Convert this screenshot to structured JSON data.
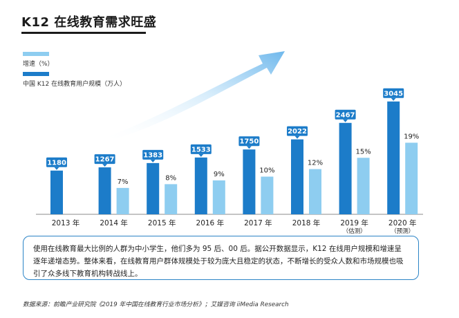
{
  "title": "K12 在线教育需求旺盛",
  "summary": "使用在线教育最大比例的人群为中小学生，他们多为 95 后、00 后。据公开数据显示，K12 在线用户规模和增速呈逐年递增态势。整体来看，在线教育用户群体规模处于较为庞大且稳定的状态，不断增长的受众人数和市场规模也吸引了众多线下教育机构转战线上。",
  "source": "数据来源：前瞻产业研究院《2019 年中国在线教育行业市场分析》；艾媒咨询 iiMedia Research",
  "colors": {
    "users": "#1c7cc9",
    "growth": "#8ecdf0",
    "label_box": "#1c7cc9",
    "text": "#222222"
  },
  "chart_data": {
    "type": "bar",
    "categories": [
      "2013 年",
      "2014 年",
      "2015 年",
      "2016 年",
      "2017 年",
      "2018 年",
      "2019 年",
      "2020 年"
    ],
    "category_notes": [
      "",
      "",
      "",
      "",
      "",
      "",
      "（估测）",
      "（预测）"
    ],
    "series": [
      {
        "name": "中国 K12 在线教育用户规模（万人）",
        "values": [
          1180,
          1267,
          1383,
          1533,
          1750,
          2022,
          2467,
          3045
        ],
        "labels": [
          "1180",
          "1267",
          "1383",
          "1533",
          "1750",
          "2022",
          "2467",
          "3045"
        ]
      },
      {
        "name": "增速（%）",
        "values": [
          null,
          7,
          8,
          9,
          10,
          12,
          15,
          19
        ],
        "labels": [
          "",
          "7%",
          "8%",
          "9%",
          "10%",
          "12%",
          "15%",
          "19%"
        ]
      }
    ],
    "legend_position": "top-left",
    "grid": false
  }
}
